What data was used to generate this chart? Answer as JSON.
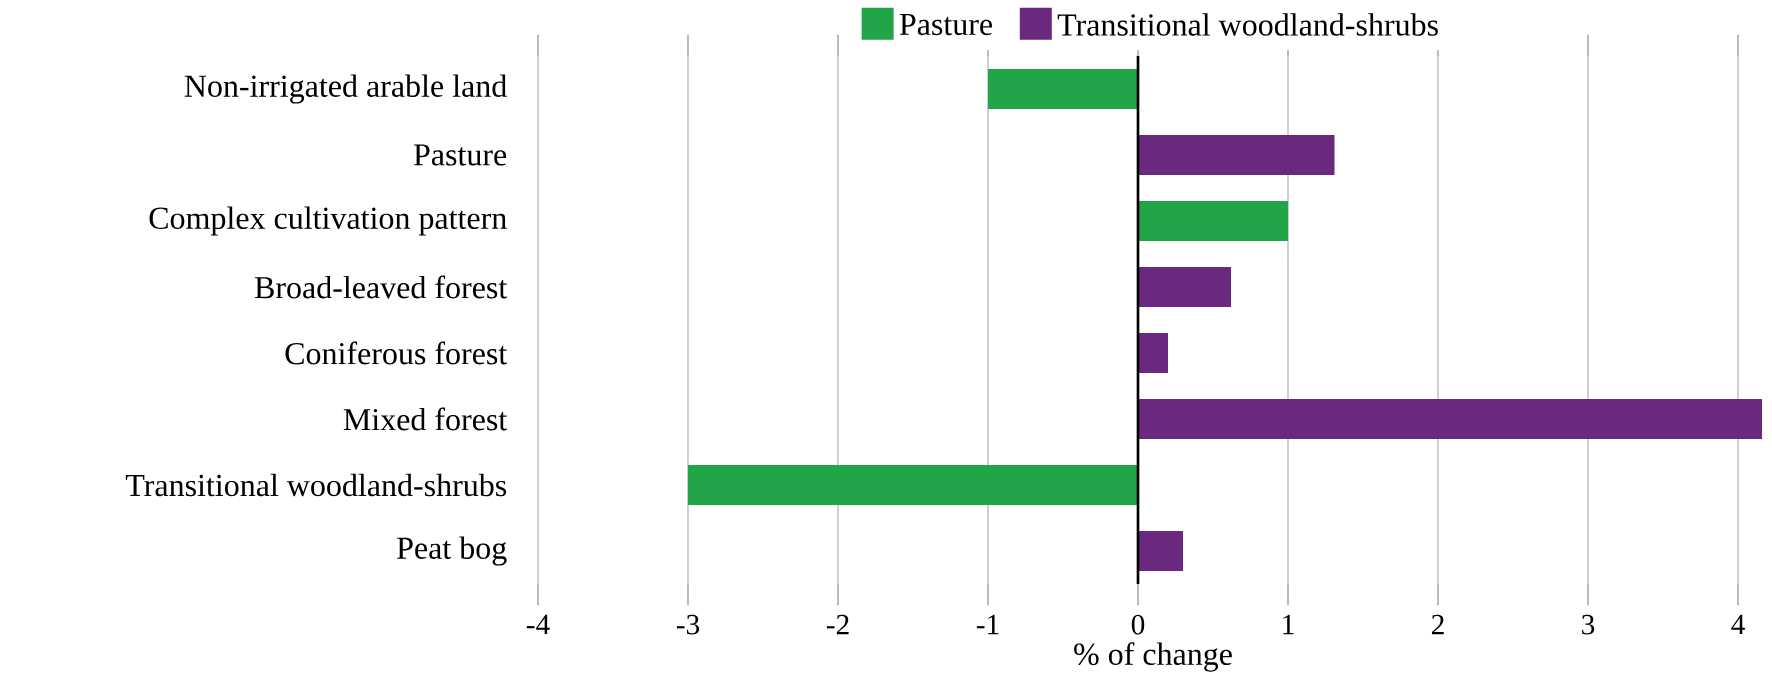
{
  "chart_data": {
    "type": "bar",
    "orientation": "horizontal",
    "xlabel": "% of change",
    "categories": [
      "Non-irrigated arable land",
      "Pasture",
      "Complex cultivation pattern",
      "Broad-leaved forest",
      "Coniferous forest",
      "Mixed forest",
      "Transitional woodland-shrubs",
      "Peat bog"
    ],
    "series": [
      {
        "name": "Pasture",
        "color": "#22a548",
        "values": [
          -1.0,
          null,
          1.0,
          null,
          null,
          null,
          -3.0,
          null
        ]
      },
      {
        "name": "Transitional woodland-shrubs",
        "color": "#6a287e",
        "values": [
          null,
          1.31,
          null,
          0.62,
          0.2,
          4.16,
          null,
          0.3
        ]
      }
    ],
    "xlim": [
      -4,
      4.2
    ],
    "xticks": [
      -4,
      -3,
      -2,
      -1,
      0,
      1,
      2,
      3,
      4
    ],
    "grid": "x",
    "legend": "top"
  }
}
